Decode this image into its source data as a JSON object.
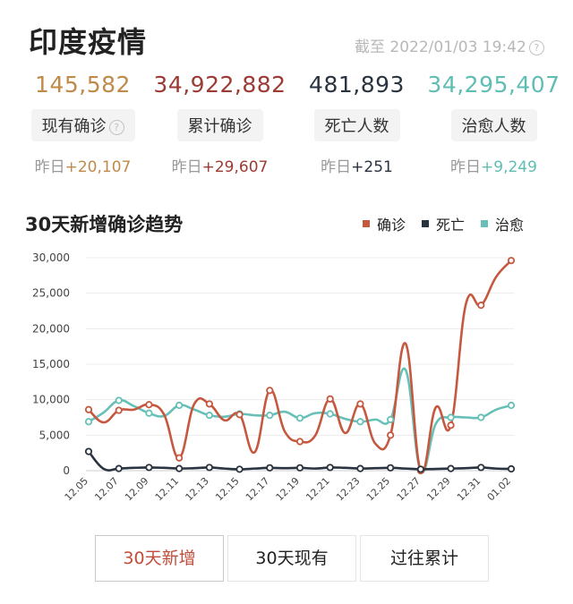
{
  "header": {
    "title": "印度疫情",
    "timestamp": "截至 2022/01/03 19:42"
  },
  "stats": [
    {
      "value": "145,582",
      "label": "现有确诊",
      "delta_prefix": "昨日",
      "delta": "+20,107",
      "color": "#bf8a4a",
      "delta_color": "#bf8a4a",
      "has_help": true
    },
    {
      "value": "34,922,882",
      "label": "累计确诊",
      "delta_prefix": "昨日",
      "delta": "+29,607",
      "color": "#9b3b34",
      "delta_color": "#9b3b34",
      "has_help": false
    },
    {
      "value": "481,893",
      "label": "死亡人数",
      "delta_prefix": "昨日",
      "delta": "+251",
      "color": "#2a3340",
      "delta_color": "#2a3340",
      "has_help": false
    },
    {
      "value": "34,295,407",
      "label": "治愈人数",
      "delta_prefix": "昨日",
      "delta": "+9,249",
      "color": "#5fbdb4",
      "delta_color": "#5fbdb4",
      "has_help": false
    }
  ],
  "chart_data": {
    "type": "line",
    "title": "30天新增确诊趋势",
    "legend_position": "top-right",
    "grid": true,
    "ylim": [
      0,
      30000
    ],
    "yticks": [
      "0",
      "5,000",
      "10,000",
      "15,000",
      "20,000",
      "25,000",
      "30,000"
    ],
    "x": [
      "12.05",
      "12.06",
      "12.07",
      "12.08",
      "12.09",
      "12.10",
      "12.11",
      "12.12",
      "12.13",
      "12.14",
      "12.15",
      "12.16",
      "12.17",
      "12.18",
      "12.19",
      "12.20",
      "12.21",
      "12.22",
      "12.23",
      "12.24",
      "12.25",
      "12.26",
      "12.27",
      "12.28",
      "12.29",
      "12.30",
      "12.31",
      "01.01",
      "01.02"
    ],
    "xticks": [
      "12.05",
      "12.07",
      "12.09",
      "12.11",
      "12.13",
      "12.15",
      "12.17",
      "12.19",
      "12.21",
      "12.23",
      "12.25",
      "12.27",
      "12.29",
      "12.31",
      "01.02"
    ],
    "series": [
      {
        "name": "确诊",
        "color": "#c5583f",
        "values": [
          8600,
          6800,
          8500,
          8600,
          9300,
          7900,
          1800,
          9400,
          9400,
          7100,
          7900,
          2600,
          11300,
          5500,
          4100,
          4900,
          10100,
          5300,
          9400,
          3800,
          5000,
          17900,
          0,
          8900,
          6400,
          23500,
          23300,
          27300,
          29600
        ]
      },
      {
        "name": "死亡",
        "color": "#2a3340",
        "values": [
          2700,
          250,
          300,
          400,
          450,
          400,
          300,
          350,
          450,
          300,
          200,
          300,
          400,
          350,
          400,
          300,
          450,
          400,
          300,
          350,
          400,
          300,
          200,
          250,
          300,
          350,
          450,
          300,
          250
        ]
      },
      {
        "name": "治愈",
        "color": "#67c0b8",
        "values": [
          6900,
          8200,
          9900,
          9100,
          8100,
          7700,
          9200,
          8600,
          7800,
          7600,
          8000,
          7800,
          7800,
          8300,
          7400,
          8100,
          8000,
          7300,
          6900,
          7200,
          7200,
          14200,
          0,
          6600,
          7500,
          7500,
          7500,
          8600,
          9200
        ]
      }
    ]
  },
  "tabs": [
    {
      "label": "30天新增",
      "active": true
    },
    {
      "label": "30天现有",
      "active": false
    },
    {
      "label": "过往累计",
      "active": false
    }
  ]
}
